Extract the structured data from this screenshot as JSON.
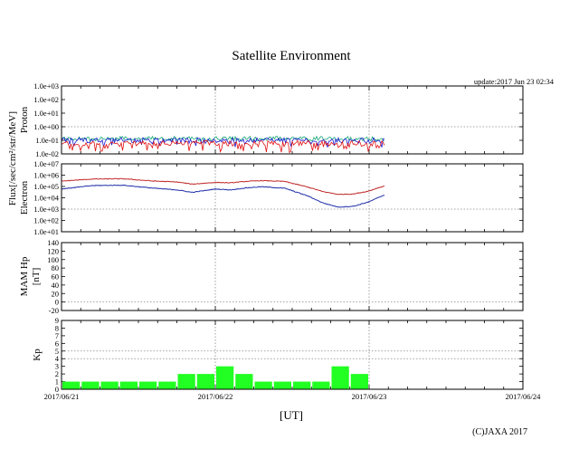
{
  "title": "Satellite Environment",
  "update_text": "update:2017 Jun 23 02:34",
  "copyright": "(C)JAXA 2017",
  "x_axis_label": "[UT]",
  "x_tick_labels": [
    "2017/06/21",
    "2017/06/22",
    "2017/06/23",
    "2017/06/24"
  ],
  "flux_label": "Flux[/sec/cm²/str/MeV]",
  "colors": {
    "proton_blue": "#1a1ad0",
    "proton_green": "#18a878",
    "proton_red": "#e01010",
    "electron_red": "#c02828",
    "electron_blue": "#1e2ea8",
    "kp_bar": "#22ff22",
    "grid": "#888888",
    "axis": "#000000"
  },
  "chart_data": [
    {
      "type": "line",
      "name": "proton",
      "ylabel": "Proton",
      "yscale": "log",
      "ylim": [
        0.01,
        1000
      ],
      "y_tick_labels": [
        "1.0e+03",
        "1.0e+02",
        "1.0e+01",
        "1.0e+00",
        "1.0e-01",
        "1.0e-02"
      ],
      "xlim": [
        0,
        3
      ],
      "data_end_day": 2.1,
      "series": [
        {
          "name": "proton-high",
          "color": "green",
          "typical": 0.13,
          "min": 0.09,
          "max": 0.2
        },
        {
          "name": "proton-mid",
          "color": "blue",
          "typical": 0.1,
          "min": 0.03,
          "max": 0.16
        },
        {
          "name": "proton-low",
          "color": "red",
          "typical": 0.06,
          "min": 0.012,
          "max": 0.1
        }
      ]
    },
    {
      "type": "line",
      "name": "electron",
      "ylabel": "Electron",
      "yscale": "log",
      "ylim": [
        10,
        10000000
      ],
      "y_tick_labels": [
        "1.0e+07",
        "1.0e+06",
        "1.0e+05",
        "1.0e+04",
        "1.0e+03",
        "1.0e+02",
        "1.0e+01"
      ],
      "xlim": [
        0,
        3
      ],
      "series": [
        {
          "name": "electron-red",
          "color": "red",
          "x": [
            0.0,
            0.2,
            0.4,
            0.6,
            0.75,
            0.85,
            1.0,
            1.1,
            1.2,
            1.3,
            1.45,
            1.6,
            1.7,
            1.8,
            1.9,
            2.0,
            2.05,
            2.1
          ],
          "y": [
            300000,
            450000,
            480000,
            300000,
            250000,
            160000,
            230000,
            210000,
            280000,
            330000,
            280000,
            90000,
            35000,
            20000,
            22000,
            40000,
            70000,
            110000
          ]
        },
        {
          "name": "electron-blue",
          "color": "blue",
          "x": [
            0.0,
            0.2,
            0.4,
            0.6,
            0.75,
            0.85,
            1.0,
            1.1,
            1.2,
            1.3,
            1.45,
            1.6,
            1.7,
            1.8,
            1.9,
            2.0,
            2.05,
            2.1
          ],
          "y": [
            60000,
            120000,
            130000,
            70000,
            50000,
            30000,
            60000,
            50000,
            75000,
            95000,
            70000,
            15000,
            3500,
            1500,
            1800,
            4500,
            9000,
            18000
          ]
        }
      ]
    },
    {
      "type": "line",
      "name": "mam-hp",
      "ylabel": "MAM Hp",
      "yunit": "[nT]",
      "ylim": [
        -20,
        140
      ],
      "y_tick_labels": [
        "140",
        "120",
        "100",
        "80",
        "60",
        "40",
        "20",
        "0",
        "-20"
      ],
      "xlim": [
        0,
        3
      ],
      "series": []
    },
    {
      "type": "bar",
      "name": "kp",
      "ylabel": "Kp",
      "ylim": [
        0,
        9
      ],
      "y_tick_labels": [
        "9",
        "8",
        "7",
        "6",
        "5",
        "4",
        "3",
        "2",
        "1",
        "0"
      ],
      "xlim": [
        0,
        3
      ],
      "bar_width_hours": 3,
      "x_start_hours": [
        0,
        3,
        6,
        9,
        12,
        15,
        18,
        21,
        24,
        27,
        30,
        33,
        36,
        39,
        42,
        45
      ],
      "values": [
        1,
        1,
        1,
        1,
        1,
        1,
        2,
        2,
        3,
        2,
        1,
        1,
        1,
        1,
        3,
        2
      ]
    }
  ]
}
